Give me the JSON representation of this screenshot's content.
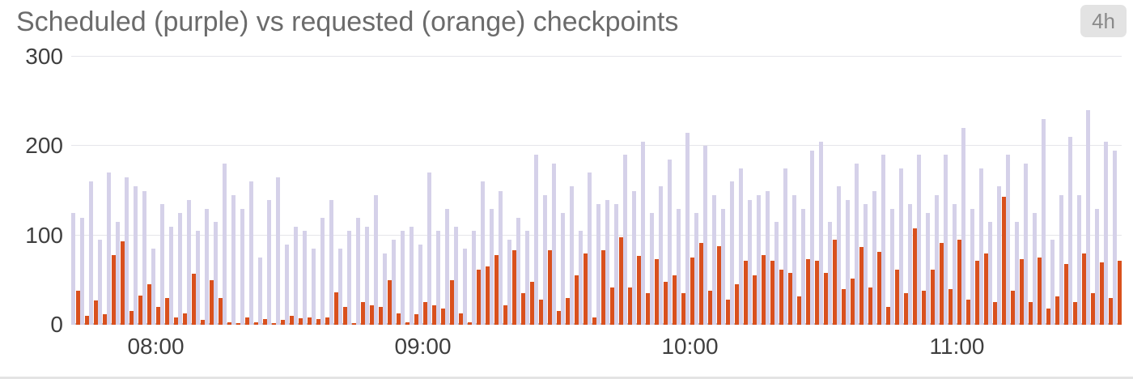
{
  "title": "Scheduled (purple) vs requested (orange) checkpoints",
  "time_range_badge": "4h",
  "colors": {
    "scheduled": "#d5d1e9",
    "requested": "#d9501d",
    "grid": "#e5e5ea",
    "axis": "#b9b9bf",
    "title": "#6b6b6b",
    "tick": "#3f3f3f",
    "badge_bg": "#e3e3e3",
    "badge_text": "#8a8a8a"
  },
  "chart_data": {
    "type": "bar",
    "title": "Scheduled (purple) vs requested (orange) checkpoints",
    "xlabel": "",
    "ylabel": "",
    "ylim": [
      0,
      300
    ],
    "yticks": [
      0,
      100,
      200,
      300
    ],
    "grid": true,
    "legend_position": "none",
    "x_start": "07:42",
    "x_interval_minutes": 2,
    "xticks": [
      {
        "label": "08:00",
        "index": 9
      },
      {
        "label": "09:00",
        "index": 39
      },
      {
        "label": "10:00",
        "index": 69
      },
      {
        "label": "11:00",
        "index": 99
      }
    ],
    "series": [
      {
        "name": "scheduled",
        "color": "#d5d1e9",
        "values": [
          125,
          120,
          160,
          95,
          170,
          115,
          165,
          155,
          150,
          85,
          135,
          110,
          125,
          140,
          105,
          130,
          115,
          180,
          145,
          130,
          160,
          75,
          140,
          165,
          90,
          110,
          105,
          85,
          120,
          140,
          85,
          105,
          120,
          110,
          145,
          80,
          95,
          105,
          110,
          90,
          170,
          105,
          130,
          110,
          85,
          105,
          160,
          130,
          150,
          95,
          120,
          105,
          190,
          145,
          180,
          125,
          155,
          105,
          170,
          135,
          140,
          135,
          190,
          150,
          205,
          125,
          155,
          185,
          130,
          215,
          125,
          200,
          145,
          130,
          160,
          175,
          140,
          145,
          150,
          115,
          175,
          145,
          130,
          195,
          205,
          115,
          155,
          140,
          180,
          135,
          150,
          190,
          130,
          175,
          135,
          190,
          125,
          145,
          190,
          135,
          220,
          130,
          175,
          115,
          155,
          190,
          115,
          180,
          125,
          230,
          95,
          145,
          210,
          145,
          240,
          130,
          205,
          195
        ]
      },
      {
        "name": "requested",
        "color": "#d9501d",
        "values": [
          38,
          10,
          27,
          12,
          78,
          93,
          15,
          33,
          45,
          20,
          30,
          8,
          13,
          57,
          5,
          50,
          30,
          3,
          2,
          8,
          3,
          6,
          2,
          5,
          10,
          7,
          8,
          6,
          8,
          36,
          20,
          2,
          25,
          22,
          20,
          50,
          13,
          3,
          12,
          25,
          22,
          18,
          50,
          13,
          3,
          62,
          65,
          78,
          22,
          83,
          35,
          48,
          28,
          83,
          15,
          30,
          55,
          80,
          8,
          83,
          42,
          98,
          42,
          77,
          35,
          73,
          48,
          55,
          35,
          75,
          92,
          38,
          88,
          28,
          45,
          72,
          55,
          78,
          72,
          62,
          58,
          32,
          73,
          72,
          58,
          95,
          40,
          52,
          87,
          42,
          82,
          20,
          62,
          35,
          108,
          38,
          62,
          92,
          40,
          95,
          28,
          72,
          80,
          25,
          143,
          38,
          73,
          25,
          75,
          18,
          32,
          68,
          25,
          80,
          35,
          70,
          30,
          72
        ]
      }
    ]
  }
}
